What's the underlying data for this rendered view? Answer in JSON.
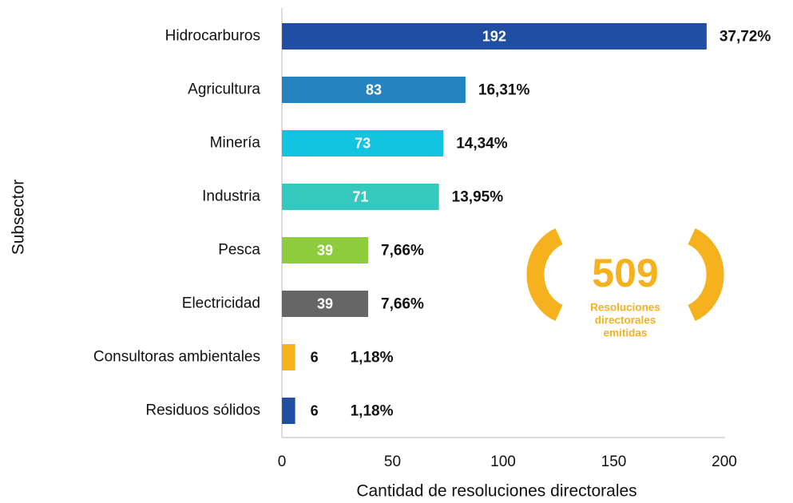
{
  "chart_data": {
    "type": "bar",
    "orientation": "horizontal",
    "categories": [
      "Hidrocarburos",
      "Agricultura",
      "Minería",
      "Industria",
      "Pesca",
      "Electricidad",
      "Consultoras ambientales",
      "Residuos sólidos"
    ],
    "values": [
      192,
      83,
      73,
      71,
      39,
      39,
      6,
      6
    ],
    "colors": [
      "#1f4ea3",
      "#2583c0",
      "#12c4e0",
      "#35c9bd",
      "#8dcc3a",
      "#666666",
      "#f5b21e",
      "#1f4ea3"
    ],
    "shares": [
      {
        "value": 37.72,
        "label": "37,72%"
      },
      {
        "value": 16.31,
        "label": "16,31%"
      },
      {
        "value": 14.34,
        "label": "14,34%"
      },
      {
        "value": 13.95,
        "label": "13,95%"
      },
      {
        "value": 7.66,
        "label": "7,66%"
      },
      {
        "value": 7.66,
        "label": "7,66%"
      },
      {
        "value": 1.18,
        "label": "1,18%"
      },
      {
        "value": 1.18,
        "label": "1,18%"
      }
    ],
    "xlim": [
      0,
      200
    ],
    "xticks": [
      0,
      50,
      100,
      150,
      200
    ],
    "xlabel": "Cantidad de resoluciones directorales",
    "ylabel": "Subsector",
    "badge": {
      "number": 509,
      "lines": [
        "Resoluciones",
        "directorales",
        "emitidas"
      ]
    }
  }
}
